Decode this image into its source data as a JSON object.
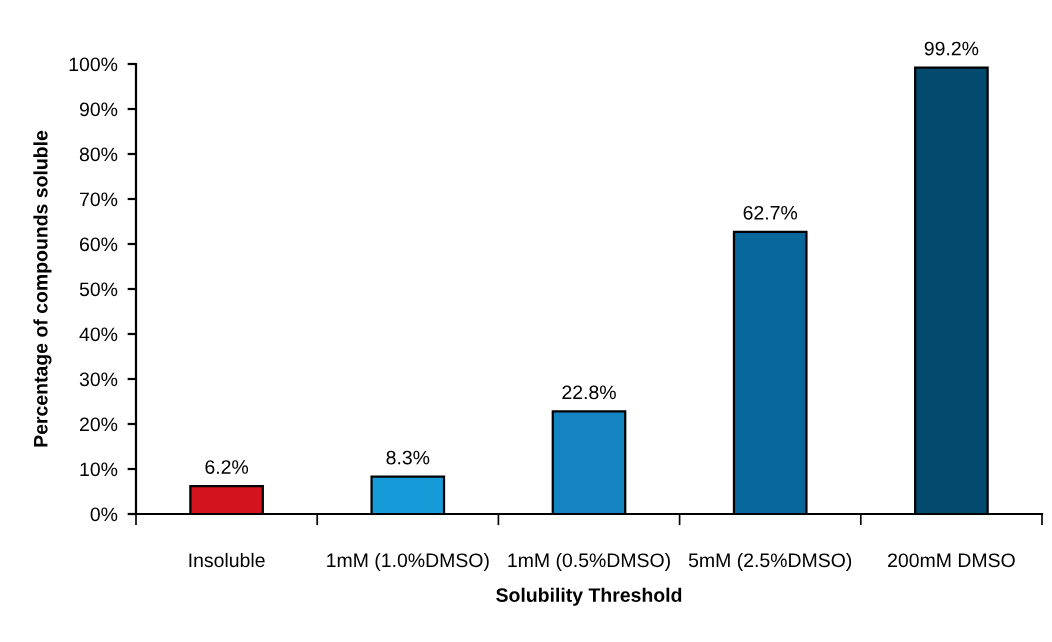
{
  "chart_data": {
    "type": "bar",
    "xlabel": "Solubility Threshold",
    "ylabel": "Percentage of compounds soluble",
    "categories": [
      "Insoluble",
      "1mM (1.0%DMSO)",
      "1mM (0.5%DMSO)",
      "5mM (2.5%DMSO)",
      "200mM DMSO"
    ],
    "values": [
      6.2,
      8.3,
      22.8,
      62.7,
      99.2
    ],
    "colors": [
      "#d3141e",
      "#169ad8",
      "#1483c2",
      "#07679b",
      "#024b6e"
    ],
    "value_labels": [
      "6.2%",
      "8.3%",
      "22.8%",
      "62.7%",
      "99.2%"
    ],
    "ylim": [
      0,
      100
    ],
    "yticks": [
      {
        "value": 0,
        "label": "0%"
      },
      {
        "value": 10,
        "label": "10%"
      },
      {
        "value": 20,
        "label": "20%"
      },
      {
        "value": 30,
        "label": "30%"
      },
      {
        "value": 40,
        "label": "40%"
      },
      {
        "value": 50,
        "label": "50%"
      },
      {
        "value": 60,
        "label": "60%"
      },
      {
        "value": 70,
        "label": "70%"
      },
      {
        "value": 80,
        "label": "80%"
      },
      {
        "value": 90,
        "label": "90%"
      },
      {
        "value": 100,
        "label": "100%"
      }
    ],
    "grid": false,
    "legend": false
  }
}
